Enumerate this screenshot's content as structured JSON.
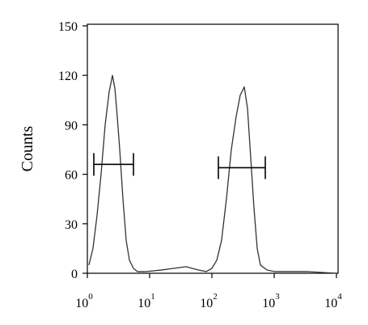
{
  "chart_data": {
    "type": "line",
    "y_label": "Counts",
    "log_x": true,
    "xlim": [
      1,
      10000
    ],
    "ylim": [
      0,
      150
    ],
    "xticks": [
      {
        "value": 1,
        "label": "10",
        "exponent": "0"
      },
      {
        "value": 10,
        "label": "10",
        "exponent": "1"
      },
      {
        "value": 100,
        "label": "10",
        "exponent": "2"
      },
      {
        "value": 1000,
        "label": "10",
        "exponent": "3"
      },
      {
        "value": 10000,
        "label": "10",
        "exponent": "4"
      }
    ],
    "yticks": [
      0,
      30,
      60,
      90,
      120,
      150
    ],
    "x": [
      1.06,
      1.23,
      1.43,
      1.66,
      1.93,
      2.24,
      2.53,
      2.77,
      3.02,
      3.31,
      3.73,
      4.2,
      4.73,
      5.5,
      6.39,
      8.61,
      15.7,
      24.5,
      38.4,
      60.1,
      81.1,
      100,
      120,
      143,
      171,
      205,
      245,
      285,
      331,
      373,
      420,
      473,
      534,
      601,
      764,
      1030,
      1875,
      3405,
      10000
    ],
    "series": [
      {
        "color": "#333333",
        "values": [
          5,
          15,
          35,
          60,
          90,
          110,
          120,
          112,
          95,
          75,
          45,
          20,
          8,
          3,
          1,
          1,
          2,
          3,
          4,
          2,
          1,
          3,
          8,
          20,
          45,
          75,
          95,
          108,
          113,
          100,
          70,
          40,
          15,
          5,
          2,
          1,
          1,
          1,
          0
        ]
      }
    ],
    "gates": [
      {
        "range": [
          1.27,
          5.5
        ],
        "y": 66
      },
      {
        "range": [
          127,
          720
        ],
        "y": 64
      }
    ]
  }
}
